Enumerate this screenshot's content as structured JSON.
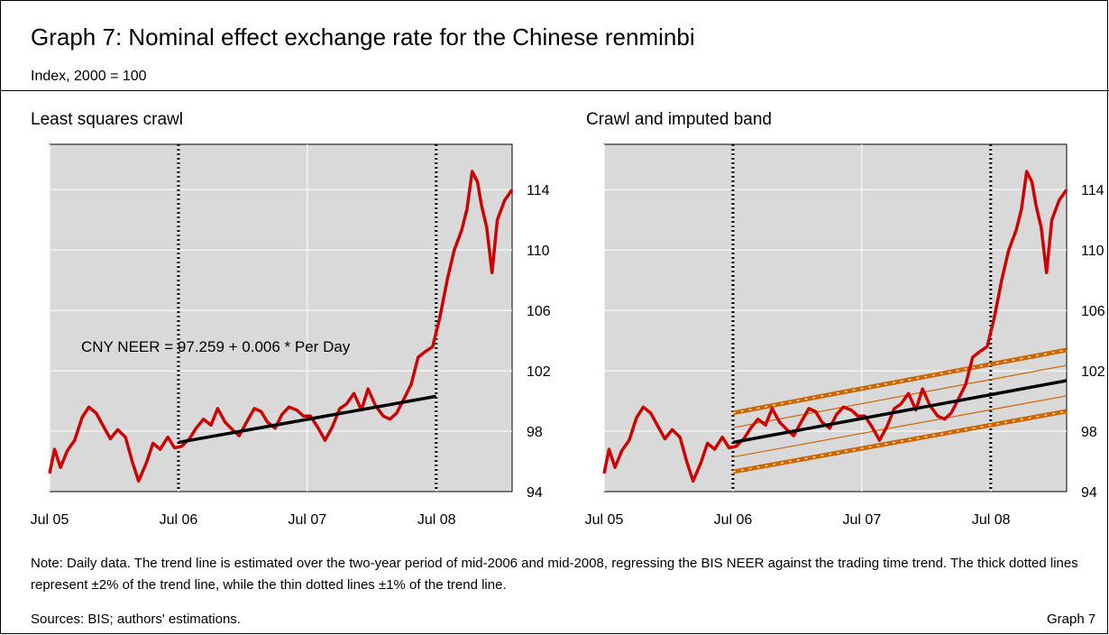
{
  "header": {
    "title": "Graph 7: Nominal effect exchange rate for the Chinese renminbi",
    "subtitle": "Index, 2000 = 100"
  },
  "footer": {
    "note": "Note: Daily data.  The trend line is estimated over the two-year period of mid-2006 and mid-2008, regressing the BIS NEER against the trading time trend.  The thick dotted lines represent ±2% of the trend line, while the thin dotted lines ±1% of the trend line.",
    "sources": "Sources: BIS; authors' estimations.",
    "graph_label": "Graph 7"
  },
  "colors": {
    "neer": "#cc0000",
    "trend": "#000000",
    "band": "#cc6600",
    "plot_bg": "#d9d9d9"
  },
  "chart_data": [
    {
      "type": "line",
      "title": "Least squares crawl",
      "annotation": "CNY NEER = 97.259 + 0.006 * Per Day",
      "x_ticks": [
        "Jul 05",
        "Jul 06",
        "Jul 07",
        "Jul 08"
      ],
      "xlim": [
        "2005-07-01",
        "2009-01-31"
      ],
      "ylim": [
        94,
        117
      ],
      "y_ticks": [
        94,
        98,
        102,
        106,
        110,
        114
      ],
      "y_axis": "right",
      "grid": true,
      "vlines": [
        "2006-07-01",
        "2008-06-30"
      ],
      "series": [
        {
          "role": "neer",
          "x": [
            "2005-07-01",
            "2005-07-15",
            "2005-08-01",
            "2005-08-20",
            "2005-09-10",
            "2005-10-01",
            "2005-10-20",
            "2005-11-10",
            "2005-12-01",
            "2005-12-20",
            "2006-01-10",
            "2006-02-01",
            "2006-02-20",
            "2006-03-10",
            "2006-04-01",
            "2006-04-20",
            "2006-05-10",
            "2006-06-01",
            "2006-06-20",
            "2006-07-10",
            "2006-08-01",
            "2006-08-20",
            "2006-09-10",
            "2006-10-01",
            "2006-10-20",
            "2006-11-10",
            "2006-12-01",
            "2006-12-20",
            "2007-01-10",
            "2007-02-01",
            "2007-02-20",
            "2007-03-10",
            "2007-04-01",
            "2007-04-20",
            "2007-05-10",
            "2007-06-01",
            "2007-06-20",
            "2007-07-10",
            "2007-08-01",
            "2007-08-20",
            "2007-09-10",
            "2007-10-01",
            "2007-10-20",
            "2007-11-10",
            "2007-12-01",
            "2007-12-20",
            "2008-01-10",
            "2008-02-01",
            "2008-02-20",
            "2008-03-10",
            "2008-04-01",
            "2008-04-20",
            "2008-05-10",
            "2008-06-01",
            "2008-06-20",
            "2008-07-10",
            "2008-08-01",
            "2008-08-20",
            "2008-09-10",
            "2008-09-25",
            "2008-10-10",
            "2008-10-25",
            "2008-11-05",
            "2008-11-20",
            "2008-12-05",
            "2008-12-20",
            "2009-01-10",
            "2009-01-31"
          ],
          "y": [
            95.2,
            96.8,
            95.6,
            96.7,
            97.4,
            98.9,
            99.6,
            99.2,
            98.3,
            97.5,
            98.1,
            97.6,
            96.0,
            94.7,
            95.9,
            97.2,
            96.8,
            97.6,
            96.9,
            97.0,
            97.5,
            98.2,
            98.8,
            98.4,
            99.5,
            98.6,
            98.1,
            97.7,
            98.6,
            99.5,
            99.3,
            98.6,
            98.2,
            99.1,
            99.6,
            99.4,
            99.0,
            99.0,
            98.2,
            97.4,
            98.3,
            99.5,
            99.8,
            100.5,
            99.4,
            100.8,
            99.7,
            99.0,
            98.8,
            99.2,
            100.2,
            101.1,
            102.9,
            103.3,
            103.6,
            105.5,
            108.1,
            110.0,
            111.3,
            112.7,
            115.2,
            114.5,
            113.0,
            111.5,
            108.5,
            112.0,
            113.3,
            114.0
          ]
        },
        {
          "role": "trend",
          "x": [
            "2006-07-01",
            "2008-06-30"
          ],
          "y": [
            97.26,
            100.31
          ]
        }
      ]
    },
    {
      "type": "line",
      "title": "Crawl and imputed band",
      "x_ticks": [
        "Jul 05",
        "Jul 06",
        "Jul 07",
        "Jul 08"
      ],
      "xlim": [
        "2005-07-01",
        "2009-01-31"
      ],
      "ylim": [
        94,
        117
      ],
      "y_ticks": [
        94,
        98,
        102,
        106,
        110,
        114
      ],
      "y_axis": "right",
      "grid": true,
      "vlines": [
        "2006-07-01",
        "2008-06-30"
      ],
      "series": [
        {
          "role": "neer",
          "x": [
            "2005-07-01",
            "2005-07-15",
            "2005-08-01",
            "2005-08-20",
            "2005-09-10",
            "2005-10-01",
            "2005-10-20",
            "2005-11-10",
            "2005-12-01",
            "2005-12-20",
            "2006-01-10",
            "2006-02-01",
            "2006-02-20",
            "2006-03-10",
            "2006-04-01",
            "2006-04-20",
            "2006-05-10",
            "2006-06-01",
            "2006-06-20",
            "2006-07-10",
            "2006-08-01",
            "2006-08-20",
            "2006-09-10",
            "2006-10-01",
            "2006-10-20",
            "2006-11-10",
            "2006-12-01",
            "2006-12-20",
            "2007-01-10",
            "2007-02-01",
            "2007-02-20",
            "2007-03-10",
            "2007-04-01",
            "2007-04-20",
            "2007-05-10",
            "2007-06-01",
            "2007-06-20",
            "2007-07-10",
            "2007-08-01",
            "2007-08-20",
            "2007-09-10",
            "2007-10-01",
            "2007-10-20",
            "2007-11-10",
            "2007-12-01",
            "2007-12-20",
            "2008-01-10",
            "2008-02-01",
            "2008-02-20",
            "2008-03-10",
            "2008-04-01",
            "2008-04-20",
            "2008-05-10",
            "2008-06-01",
            "2008-06-20",
            "2008-07-10",
            "2008-08-01",
            "2008-08-20",
            "2008-09-10",
            "2008-09-25",
            "2008-10-10",
            "2008-10-25",
            "2008-11-05",
            "2008-11-20",
            "2008-12-05",
            "2008-12-20",
            "2009-01-10",
            "2009-01-31"
          ],
          "y": [
            95.2,
            96.8,
            95.6,
            96.7,
            97.4,
            98.9,
            99.6,
            99.2,
            98.3,
            97.5,
            98.1,
            97.6,
            96.0,
            94.7,
            95.9,
            97.2,
            96.8,
            97.6,
            96.9,
            97.0,
            97.5,
            98.2,
            98.8,
            98.4,
            99.5,
            98.6,
            98.1,
            97.7,
            98.6,
            99.5,
            99.3,
            98.6,
            98.2,
            99.1,
            99.6,
            99.4,
            99.0,
            99.0,
            98.2,
            97.4,
            98.3,
            99.5,
            99.8,
            100.5,
            99.4,
            100.8,
            99.7,
            99.0,
            98.8,
            99.2,
            100.2,
            101.1,
            102.9,
            103.3,
            103.6,
            105.5,
            108.1,
            110.0,
            111.3,
            112.7,
            115.2,
            114.5,
            113.0,
            111.5,
            108.5,
            112.0,
            113.3,
            114.0
          ]
        },
        {
          "role": "trend",
          "x": [
            "2006-07-01",
            "2009-01-31"
          ],
          "y": [
            97.26,
            101.35
          ]
        },
        {
          "role": "band_upper_2pct",
          "x": [
            "2006-07-01",
            "2009-01-31"
          ],
          "y": [
            99.21,
            103.38
          ]
        },
        {
          "role": "band_upper_1pct",
          "x": [
            "2006-07-01",
            "2009-01-31"
          ],
          "y": [
            98.23,
            102.36
          ]
        },
        {
          "role": "band_lower_1pct",
          "x": [
            "2006-07-01",
            "2009-01-31"
          ],
          "y": [
            96.29,
            100.34
          ]
        },
        {
          "role": "band_lower_2pct",
          "x": [
            "2006-07-01",
            "2009-01-31"
          ],
          "y": [
            95.31,
            99.32
          ]
        }
      ]
    }
  ]
}
